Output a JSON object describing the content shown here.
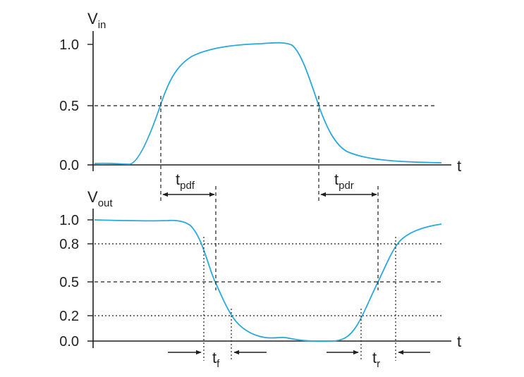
{
  "colors": {
    "curve": "#29a8dc",
    "ink": "#231f20"
  },
  "top_panel": {
    "axis_label_main": "V",
    "axis_label_sub": "in",
    "time_label": "t",
    "ticks": [
      "1.0",
      "0.5",
      "0.0"
    ]
  },
  "bottom_panel": {
    "axis_label_main": "V",
    "axis_label_sub": "out",
    "time_label": "t",
    "ticks": [
      "1.0",
      "0.8",
      "0.5",
      "0.2",
      "0.0"
    ]
  },
  "intervals": {
    "tpdf": {
      "main": "t",
      "sub": "pdf"
    },
    "tpdr": {
      "main": "t",
      "sub": "pdr"
    },
    "tf": {
      "main": "t",
      "sub": "f"
    },
    "tr": {
      "main": "t",
      "sub": "r"
    }
  }
}
